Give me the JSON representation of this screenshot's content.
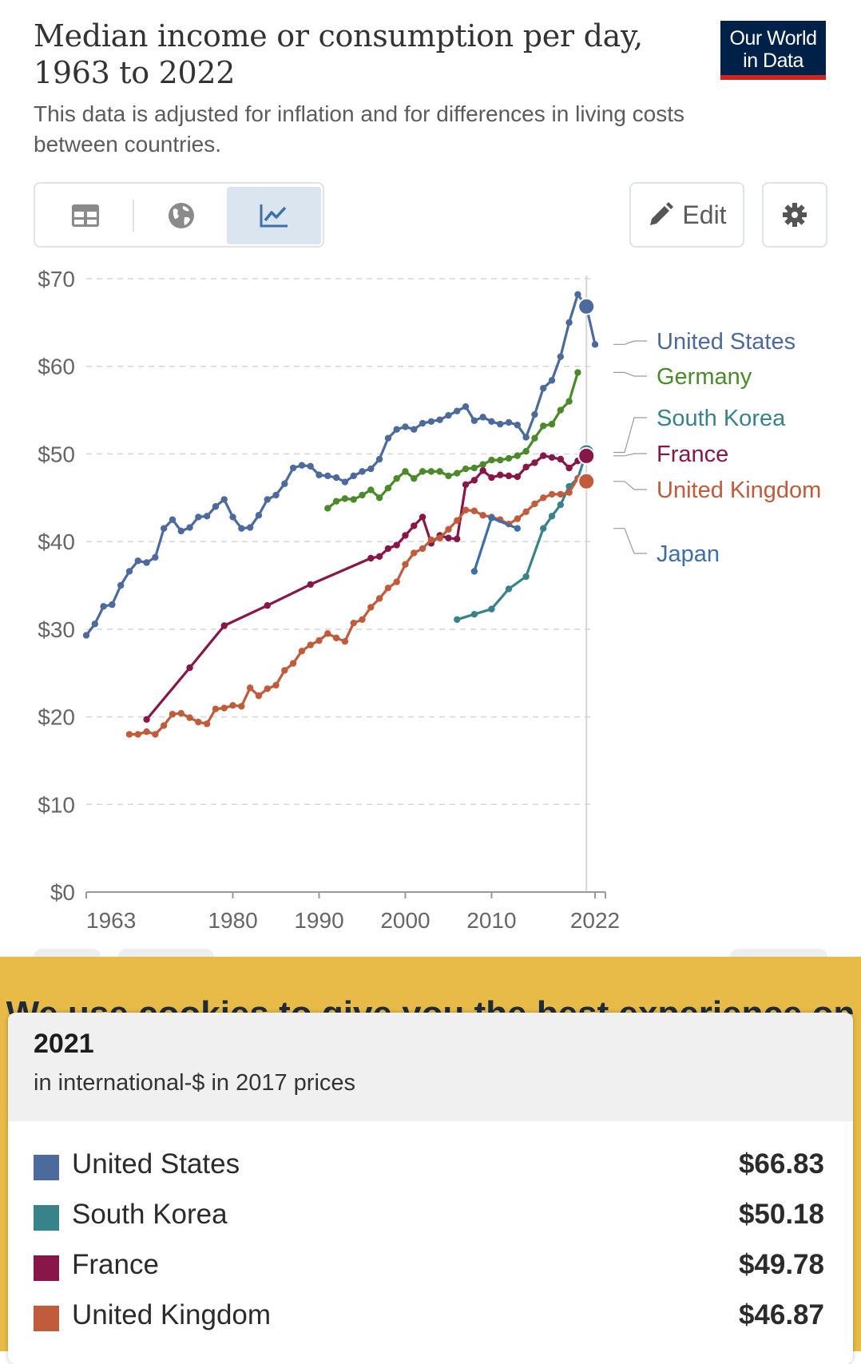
{
  "header": {
    "title": "Median income or consumption per day, 1963 to 2022",
    "subtitle": "This data is adjusted for inflation and for differences in living costs between countries.",
    "logo_line1": "Our World",
    "logo_line2": "in Data"
  },
  "toolbar": {
    "tabs": [
      {
        "icon": "table-icon",
        "label": "Table"
      },
      {
        "icon": "globe-icon",
        "label": "Map"
      },
      {
        "icon": "line-chart-icon",
        "label": "Chart"
      }
    ],
    "active_tab": 2,
    "edit_label": "Edit",
    "settings_icon": "gear-icon"
  },
  "chart_data": {
    "type": "line",
    "title": "Median income or consumption per day, 1963 to 2022",
    "subtitle": "This data is adjusted for inflation and for differences in living costs between countries.",
    "ylim": [
      0,
      70
    ],
    "xlim": [
      1963,
      2022
    ],
    "yticks": [
      0,
      10,
      20,
      30,
      40,
      50,
      60,
      70
    ],
    "ytick_labels": [
      "$0",
      "$10",
      "$20",
      "$30",
      "$40",
      "$50",
      "$60",
      "$70"
    ],
    "xticks": [
      1963,
      1980,
      1990,
      2000,
      2010,
      2022
    ],
    "grid": "horizontal-dashed",
    "legend": "right-end-labels",
    "highlight_year": 2021,
    "series": [
      {
        "name": "United States",
        "color": "#4c6a9c",
        "x": [
          1963,
          1964,
          1965,
          1966,
          1967,
          1968,
          1969,
          1970,
          1971,
          1972,
          1973,
          1974,
          1975,
          1976,
          1977,
          1978,
          1979,
          1980,
          1981,
          1982,
          1983,
          1984,
          1985,
          1986,
          1987,
          1988,
          1989,
          1990,
          1991,
          1992,
          1993,
          1994,
          1995,
          1996,
          1997,
          1998,
          1999,
          2000,
          2001,
          2002,
          2003,
          2004,
          2005,
          2006,
          2007,
          2008,
          2009,
          2010,
          2011,
          2012,
          2013,
          2014,
          2015,
          2016,
          2017,
          2018,
          2019,
          2020,
          2021,
          2022
        ],
        "y": [
          29.3,
          30.6,
          32.6,
          32.8,
          35.0,
          36.6,
          37.8,
          37.6,
          38.2,
          41.5,
          42.5,
          41.2,
          41.6,
          42.8,
          42.9,
          44.0,
          44.8,
          42.8,
          41.5,
          41.6,
          43.0,
          44.8,
          45.3,
          46.6,
          48.4,
          48.7,
          48.6,
          47.6,
          47.5,
          47.3,
          46.8,
          47.5,
          48.0,
          48.3,
          49.4,
          51.8,
          52.8,
          53.1,
          52.8,
          53.5,
          53.7,
          53.9,
          54.4,
          54.9,
          55.4,
          53.8,
          54.2,
          53.7,
          53.4,
          53.6,
          53.3,
          51.9,
          54.5,
          57.5,
          58.4,
          61.1,
          65.0,
          68.2,
          66.83,
          62.5
        ]
      },
      {
        "name": "Germany",
        "color": "#4a8a2a",
        "x": [
          1991,
          1992,
          1993,
          1994,
          1995,
          1996,
          1997,
          1998,
          1999,
          2000,
          2001,
          2002,
          2003,
          2004,
          2005,
          2006,
          2007,
          2008,
          2009,
          2010,
          2011,
          2012,
          2013,
          2014,
          2015,
          2016,
          2017,
          2018,
          2019,
          2020
        ],
        "y": [
          43.8,
          44.6,
          44.9,
          44.8,
          45.3,
          45.9,
          45.0,
          46.1,
          47.2,
          48.0,
          47.2,
          48.0,
          48.0,
          48.0,
          47.5,
          47.8,
          48.3,
          48.4,
          48.8,
          49.3,
          49.3,
          49.5,
          49.8,
          50.3,
          51.8,
          53.2,
          53.4,
          55.0,
          56.0,
          59.3
        ]
      },
      {
        "name": "South Korea",
        "color": "#38828a",
        "x": [
          2006,
          2008,
          2010,
          2012,
          2014,
          2016,
          2017,
          2018,
          2019,
          2020,
          2021
        ],
        "y": [
          31.1,
          31.7,
          32.3,
          34.6,
          36.0,
          41.5,
          42.9,
          44.2,
          46.3,
          47.2,
          50.18
        ]
      },
      {
        "name": "France",
        "color": "#891648",
        "x": [
          1970,
          1975,
          1979,
          1984,
          1989,
          1996,
          1997,
          1998,
          1999,
          2000,
          2001,
          2002,
          2003,
          2004,
          2005,
          2006,
          2007,
          2008,
          2009,
          2010,
          2011,
          2012,
          2013,
          2014,
          2015,
          2016,
          2017,
          2018,
          2019,
          2020,
          2021
        ],
        "y": [
          19.7,
          25.6,
          30.4,
          32.7,
          35.1,
          38.1,
          38.3,
          39.2,
          39.6,
          40.7,
          41.8,
          42.8,
          39.8,
          40.7,
          40.4,
          40.3,
          46.5,
          47.0,
          48.1,
          47.3,
          47.6,
          47.5,
          47.4,
          48.5,
          49.0,
          49.8,
          49.6,
          49.4,
          48.4,
          49.2,
          49.78
        ]
      },
      {
        "name": "United Kingdom",
        "color": "#c05b3b",
        "x": [
          1968,
          1969,
          1970,
          1971,
          1972,
          1973,
          1974,
          1975,
          1976,
          1977,
          1978,
          1979,
          1980,
          1981,
          1982,
          1983,
          1984,
          1985,
          1986,
          1987,
          1988,
          1989,
          1990,
          1991,
          1992,
          1993,
          1994,
          1995,
          1996,
          1997,
          1998,
          1999,
          2000,
          2001,
          2002,
          2003,
          2004,
          2005,
          2006,
          2007,
          2008,
          2009,
          2010,
          2011,
          2012,
          2013,
          2014,
          2015,
          2016,
          2017,
          2018,
          2019,
          2020,
          2021
        ],
        "y": [
          18.0,
          18.0,
          18.3,
          18.0,
          19.0,
          20.3,
          20.4,
          19.9,
          19.4,
          19.2,
          20.9,
          21.0,
          21.3,
          21.2,
          23.3,
          22.4,
          23.2,
          23.6,
          25.3,
          26.1,
          27.5,
          28.2,
          28.7,
          29.5,
          29.0,
          28.6,
          30.7,
          31.1,
          32.5,
          33.5,
          34.7,
          35.4,
          37.4,
          38.7,
          39.2,
          40.2,
          40.4,
          41.4,
          42.4,
          43.6,
          43.5,
          43.0,
          42.8,
          42.5,
          42.0,
          42.6,
          43.4,
          44.3,
          45.0,
          45.4,
          45.4,
          45.6,
          47.2,
          46.87
        ]
      },
      {
        "name": "Japan",
        "color": "#3e6ea8",
        "x": [
          2008,
          2010,
          2013
        ],
        "y": [
          36.6,
          42.7,
          41.5
        ]
      }
    ]
  },
  "cookie_banner": {
    "text": "We use cookies to give you the best experience on"
  },
  "tooltip": {
    "year": "2021",
    "unit": "in international-$ in 2017 prices",
    "rows": [
      {
        "name": "United States",
        "value": "$66.83",
        "color": "#4c6a9c"
      },
      {
        "name": "South Korea",
        "value": "$50.18",
        "color": "#38828a"
      },
      {
        "name": "France",
        "value": "$49.78",
        "color": "#891648"
      },
      {
        "name": "United Kingdom",
        "value": "$46.87",
        "color": "#c05b3b"
      }
    ]
  }
}
